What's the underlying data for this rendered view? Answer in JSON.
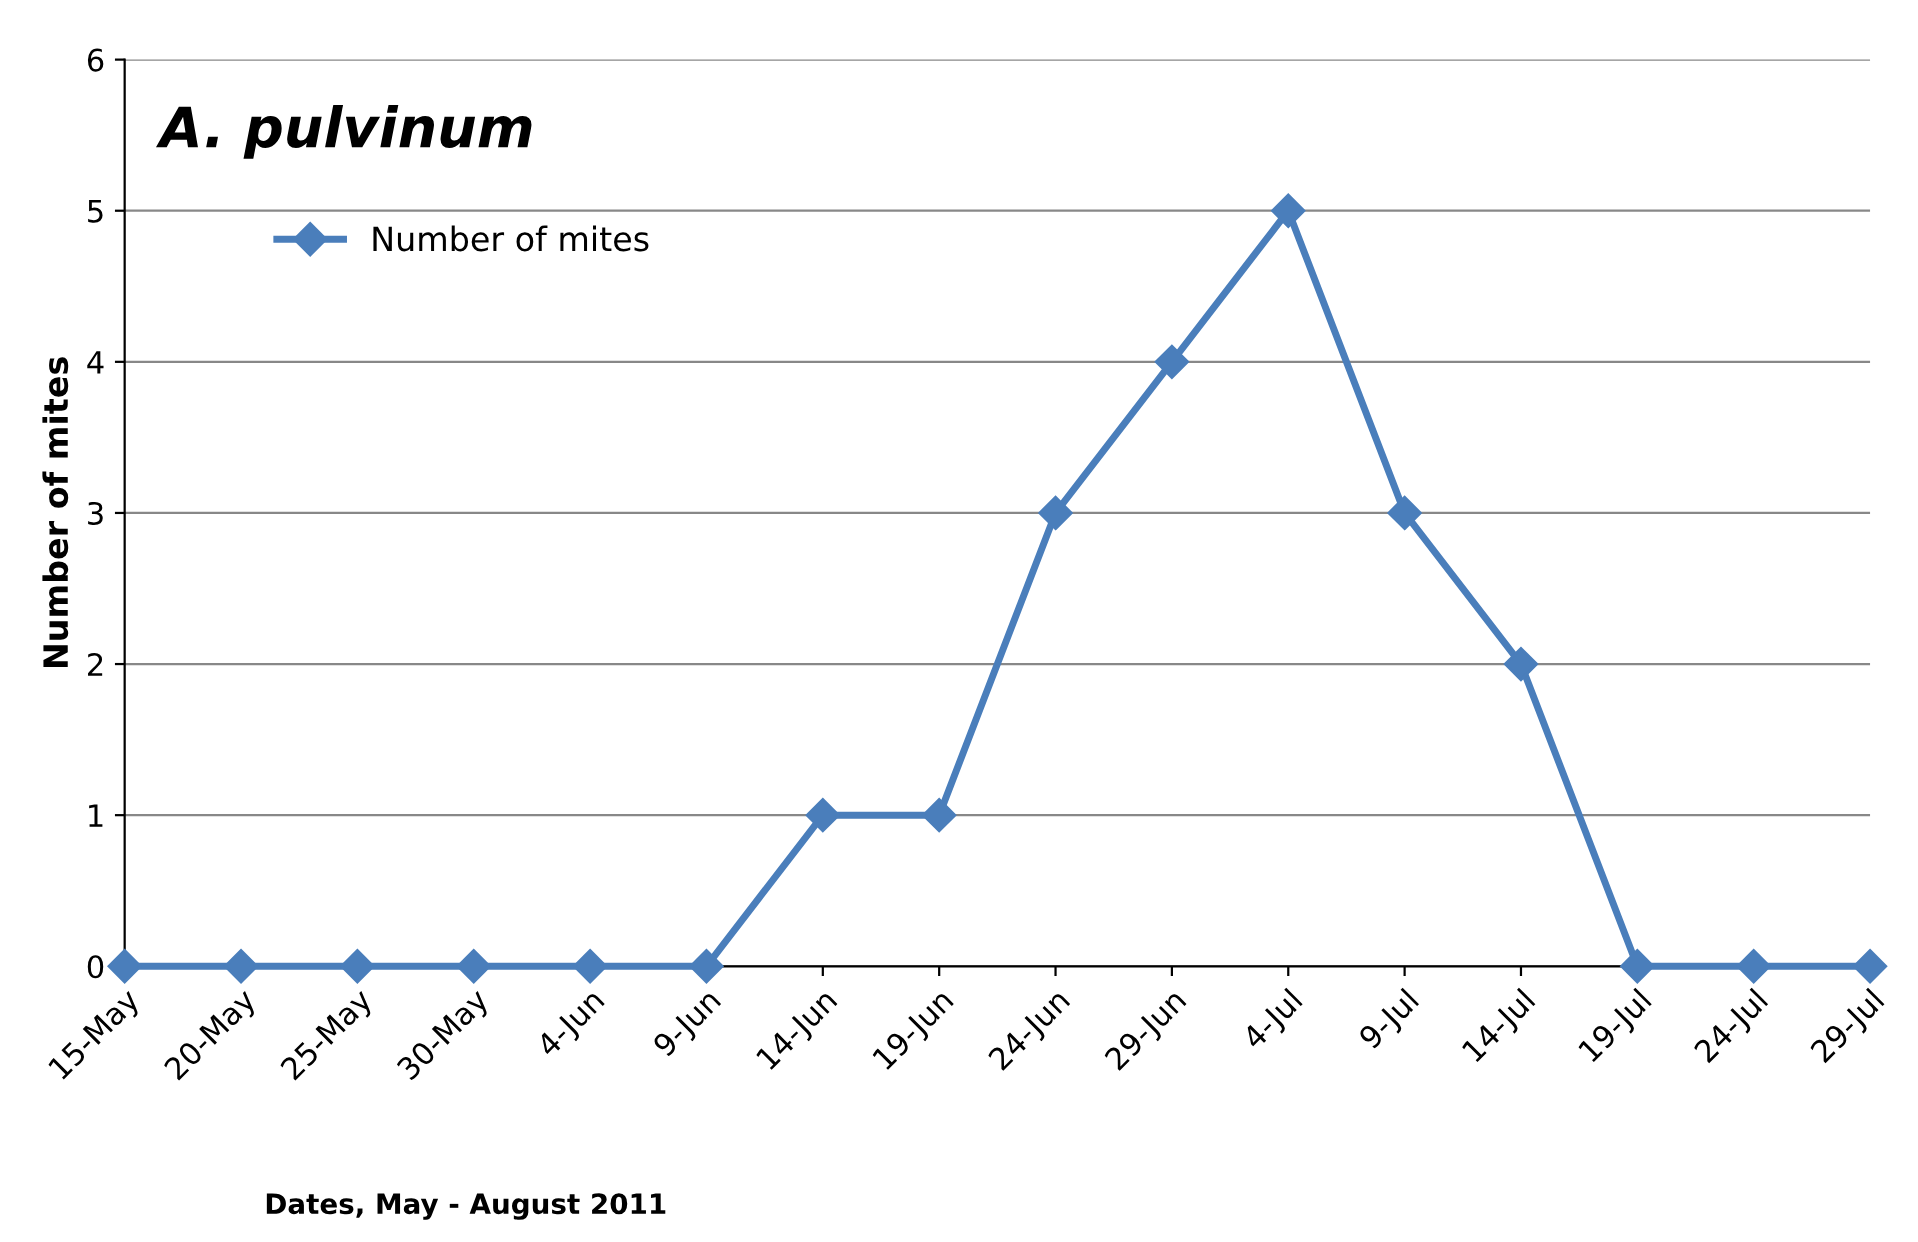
{
  "chart_data": {
    "type": "line",
    "title": "A. pulvinum",
    "xlabel": "Dates, May - August 2011",
    "ylabel": "Number of mites",
    "categories": [
      "15-May",
      "20-May",
      "25-May",
      "30-May",
      "4-Jun",
      "9-Jun",
      "14-Jun",
      "19-Jun",
      "24-Jun",
      "29-Jun",
      "4-Jul",
      "9-Jul",
      "14-Jul",
      "19-Jul",
      "24-Jul",
      "29-Jul"
    ],
    "series": [
      {
        "name": "Number of mites",
        "color": "#4a7ebb",
        "values": [
          0,
          0,
          0,
          0,
          0,
          0,
          1,
          1,
          3,
          4,
          5,
          3,
          2,
          0,
          0,
          0
        ]
      }
    ],
    "ylim": [
      0,
      6
    ],
    "yticks": [
      0,
      1,
      2,
      3,
      4,
      5,
      6
    ],
    "grid": "y",
    "legend": "top left",
    "marker": "diamond",
    "line_style": "solid"
  }
}
